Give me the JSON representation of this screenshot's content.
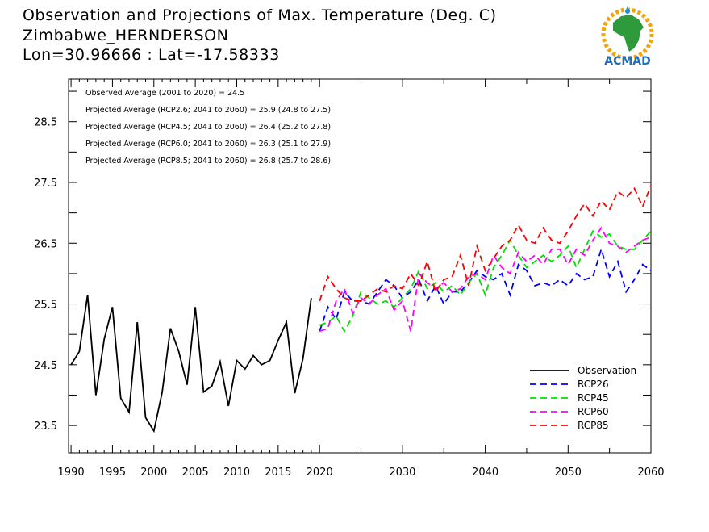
{
  "header": {
    "title": "Observation and Projections of Max. Temperature (Deg. C)",
    "station": "Zimbabwe_HERNDERSON",
    "coords": "Lon=30.96666 : Lat=-17.58333"
  },
  "logo": {
    "text": "ACMAD",
    "icon": "africa-map-logo"
  },
  "chart_data": {
    "type": "line",
    "title": "Observation and Projections of Max. Temperature (Deg. C)",
    "xlabel": "",
    "ylabel": "",
    "xlim": [
      1989.7,
      2060
    ],
    "ylim": [
      23.05,
      29.2
    ],
    "grid": false,
    "legend_position": "bottom-right",
    "y_ticks": [
      23.5,
      24.5,
      25.5,
      26.5,
      27.5,
      28.5
    ],
    "x_ticks": [
      1990,
      1995,
      2000,
      2005,
      2010,
      2015,
      2020,
      2030,
      2040,
      2050,
      2060
    ],
    "annotations": [
      "Observed Average (2001 to 2020) = 24.5",
      "Projected Average (RCP2.6; 2041 to 2060) = 25.9 (24.8 to 27.5)",
      "Projected Average (RCP4.5; 2041 to 2060) = 26.4 (25.2 to 27.8)",
      "Projected Average (RCP6.0; 2041 to 2060) = 26.3 (25.1 to 27.9)",
      "Projected Average (RCP8.5; 2041 to 2060) = 26.8 (25.7 to 28.6)"
    ],
    "series": [
      {
        "name": "Observation",
        "color": "#000000",
        "dashed": false,
        "x": [
          1990,
          1991,
          1992,
          1993,
          1994,
          1995,
          1996,
          1997,
          1998,
          1999,
          2000,
          2001,
          2002,
          2003,
          2004,
          2005,
          2006,
          2007,
          2008,
          2009,
          2010,
          2011,
          2012,
          2013,
          2014,
          2015,
          2016,
          2017,
          2018,
          2019,
          2020
        ],
        "y": [
          24.5,
          24.72,
          25.65,
          24.0,
          24.92,
          25.45,
          23.95,
          23.72,
          25.2,
          23.63,
          23.41,
          24.05,
          25.1,
          24.72,
          24.17,
          25.45,
          24.05,
          24.15,
          24.55,
          23.82,
          24.57,
          24.43,
          24.65,
          24.5,
          24.57,
          24.9,
          25.2,
          24.03,
          24.6,
          25.6,
          null
        ]
      },
      {
        "name": "RCP26",
        "color": "#0000ff",
        "dashed": true,
        "x": [
          2020,
          2021,
          2022,
          2023,
          2024,
          2025,
          2026,
          2027,
          2028,
          2029,
          2030,
          2031,
          2032,
          2033,
          2034,
          2035,
          2036,
          2037,
          2038,
          2039,
          2040,
          2041,
          2042,
          2043,
          2044,
          2045,
          2046,
          2047,
          2048,
          2049,
          2050,
          2051,
          2052,
          2053,
          2054,
          2055,
          2056,
          2057,
          2058,
          2059,
          2060
        ],
        "y": [
          25.05,
          25.45,
          25.25,
          25.7,
          25.55,
          25.55,
          25.5,
          25.7,
          25.9,
          25.8,
          25.6,
          25.7,
          25.9,
          25.55,
          25.8,
          25.5,
          25.7,
          25.7,
          25.85,
          26.05,
          25.95,
          25.9,
          26.0,
          25.65,
          26.15,
          26.05,
          25.8,
          25.85,
          25.8,
          25.9,
          25.8,
          26.0,
          25.9,
          25.95,
          26.4,
          25.95,
          26.2,
          25.7,
          25.9,
          26.15,
          26.05
        ]
      },
      {
        "name": "RCP45",
        "color": "#00e000",
        "dashed": true,
        "x": [
          2020,
          2021,
          2022,
          2023,
          2024,
          2025,
          2026,
          2027,
          2028,
          2029,
          2030,
          2031,
          2032,
          2033,
          2034,
          2035,
          2036,
          2037,
          2038,
          2039,
          2040,
          2041,
          2042,
          2043,
          2044,
          2045,
          2046,
          2047,
          2048,
          2049,
          2050,
          2051,
          2052,
          2053,
          2054,
          2055,
          2056,
          2057,
          2058,
          2059,
          2060
        ],
        "y": [
          25.15,
          25.2,
          25.3,
          25.05,
          25.3,
          25.7,
          25.6,
          25.5,
          25.55,
          25.45,
          25.6,
          25.75,
          26.05,
          25.75,
          25.85,
          25.7,
          25.8,
          25.65,
          25.85,
          26.0,
          25.65,
          26.1,
          26.3,
          26.55,
          26.3,
          26.1,
          26.2,
          26.3,
          26.2,
          26.3,
          26.45,
          26.1,
          26.4,
          26.7,
          26.6,
          26.65,
          26.45,
          26.4,
          26.4,
          26.55,
          26.7
        ]
      },
      {
        "name": "RCP60",
        "color": "#ff00ff",
        "dashed": true,
        "x": [
          2020,
          2021,
          2022,
          2023,
          2024,
          2025,
          2026,
          2027,
          2028,
          2029,
          2030,
          2031,
          2032,
          2033,
          2034,
          2035,
          2036,
          2037,
          2038,
          2039,
          2040,
          2041,
          2042,
          2043,
          2044,
          2045,
          2046,
          2047,
          2048,
          2049,
          2050,
          2051,
          2052,
          2053,
          2054,
          2055,
          2056,
          2057,
          2058,
          2059,
          2060
        ],
        "y": [
          25.05,
          25.1,
          25.55,
          25.75,
          25.35,
          25.6,
          25.5,
          25.65,
          25.75,
          25.4,
          25.55,
          25.05,
          26.0,
          25.85,
          25.75,
          25.85,
          25.7,
          25.75,
          25.95,
          26.0,
          25.9,
          26.3,
          26.1,
          26.0,
          26.35,
          26.2,
          26.3,
          26.15,
          26.4,
          26.4,
          26.15,
          26.4,
          26.3,
          26.55,
          26.75,
          26.5,
          26.45,
          26.35,
          26.45,
          26.55,
          26.6
        ]
      },
      {
        "name": "RCP85",
        "color": "#ff0000",
        "dashed": true,
        "x": [
          2020,
          2021,
          2022,
          2023,
          2024,
          2025,
          2026,
          2027,
          2028,
          2029,
          2030,
          2031,
          2032,
          2033,
          2034,
          2035,
          2036,
          2037,
          2038,
          2039,
          2040,
          2041,
          2042,
          2043,
          2044,
          2045,
          2046,
          2047,
          2048,
          2049,
          2050,
          2051,
          2052,
          2053,
          2054,
          2055,
          2056,
          2057,
          2058,
          2059,
          2060
        ],
        "y": [
          25.55,
          25.95,
          25.75,
          25.6,
          25.55,
          25.55,
          25.65,
          25.75,
          25.7,
          25.8,
          25.75,
          26.0,
          25.8,
          26.2,
          25.7,
          25.9,
          25.95,
          26.3,
          25.8,
          26.45,
          26.05,
          26.25,
          26.45,
          26.55,
          26.8,
          26.55,
          26.5,
          26.75,
          26.55,
          26.5,
          26.7,
          26.95,
          27.15,
          26.95,
          27.2,
          27.05,
          27.35,
          27.25,
          27.4,
          27.1,
          27.45
        ]
      }
    ]
  }
}
